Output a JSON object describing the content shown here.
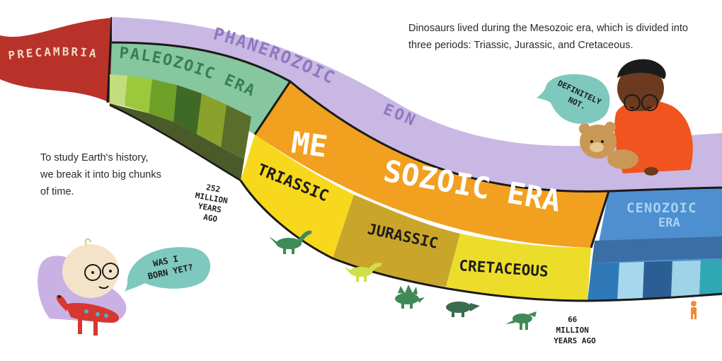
{
  "intro_text": "Dinosaurs lived during the Mesozoic era, which is divided into three periods: Triassic, Jurassic, and Cretaceous.",
  "study_lines": [
    "To study Earth's history,",
    "we break it into big chunks",
    "of time."
  ],
  "labels": {
    "precambrian": "PRECAMBRIAN",
    "phanerozoic": "PHANEROZOIC",
    "eon": "EON",
    "paleozoic": "PALEOZOIC ERA",
    "mesozoic_1": "ME",
    "mesozoic_2": "SOZOIC ERA",
    "triassic": "TRIASSIC",
    "jurassic": "JURASSIC",
    "cretaceous": "CRETACEOUS",
    "cenozoic_1": "CENOZOIC",
    "cenozoic_2": "ERA"
  },
  "notes": {
    "m252_lines": [
      "252",
      "MILLION",
      "YEARS",
      "AGO"
    ],
    "m66_lines": [
      "66",
      "MILLION",
      "YEARS AGO"
    ]
  },
  "bubbles": {
    "baby_lines": [
      "WAS I",
      "BORN YET?"
    ],
    "boy_lines": [
      "DEFINITELY",
      "NOT."
    ]
  },
  "colors": {
    "precambrian": "#b8322a",
    "phanerozoic": "#c9b8e3",
    "paleozoic": "#86c7a0",
    "mesozoic": "#f2a01f",
    "triassic": "#f7d81c",
    "jurassic": "#c9a52a",
    "cretaceous": "#ecdd2a",
    "cenozoic": "#4e8fd0",
    "bubble": "#7ec8bd",
    "dino": "#3f8a55"
  }
}
